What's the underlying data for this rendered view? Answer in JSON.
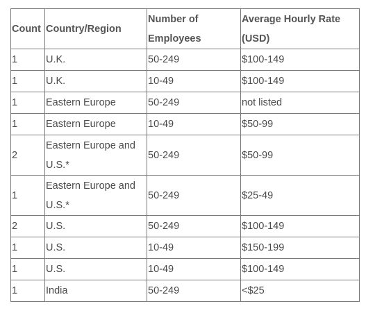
{
  "table": {
    "headers": {
      "count": "Count",
      "country": "Country/Region",
      "employees": "Number of Employees",
      "rate": "Average Hourly Rate (USD)"
    },
    "rows": [
      {
        "count": "1",
        "country": "U.K.",
        "employees": "50-249",
        "rate": "$100-149"
      },
      {
        "count": "1",
        "country": "U.K.",
        "employees": "10-49",
        "rate": "$100-149"
      },
      {
        "count": "1",
        "country": "Eastern Europe",
        "employees": "50-249",
        "rate": "not listed"
      },
      {
        "count": "1",
        "country": "Eastern Europe",
        "employees": "10-49",
        "rate": "$50-99"
      },
      {
        "count": "2",
        "country": "Eastern Europe and U.S.*",
        "employees": "50-249",
        "rate": "$50-99"
      },
      {
        "count": "1",
        "country": "Eastern Europe and U.S.*",
        "employees": "50-249",
        "rate": "$25-49"
      },
      {
        "count": "2",
        "country": "U.S.",
        "employees": "50-249",
        "rate": "$100-149"
      },
      {
        "count": "1",
        "country": "U.S.",
        "employees": "10-49",
        "rate": "$150-199"
      },
      {
        "count": "1",
        "country": "U.S.",
        "employees": "10-49",
        "rate": "$100-149"
      },
      {
        "count": "1",
        "country": "India",
        "employees": "50-249",
        "rate": "<$25"
      }
    ]
  }
}
